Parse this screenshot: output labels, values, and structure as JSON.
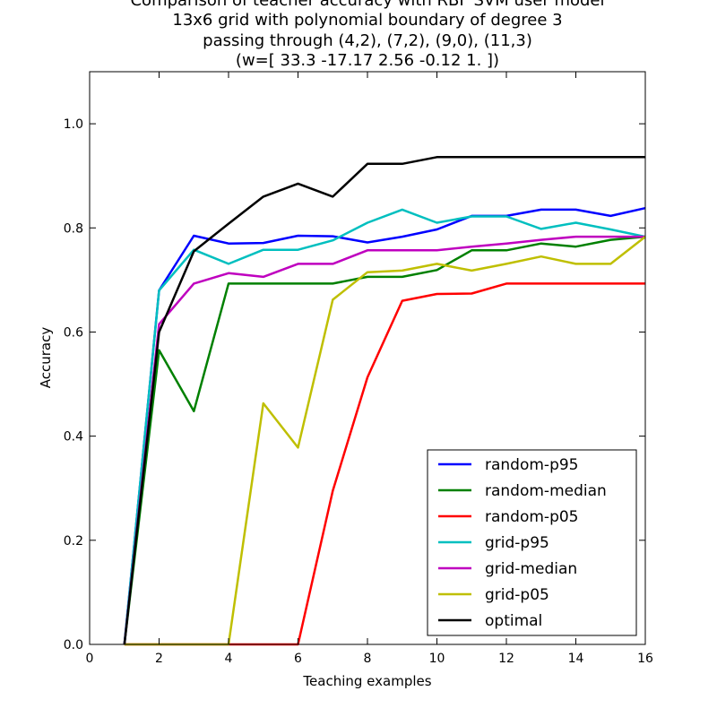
{
  "chart_data": {
    "type": "line",
    "title_lines": [
      "Comparison of teacher accuracy with RBF SVM user model",
      "13x6 grid with polynomial boundary of degree 3",
      "passing through (4,2), (7,2), (9,0), (11,3)",
      "(w=[ 33.3  -17.17   2.56  -0.12   1.  ])"
    ],
    "xlabel": "Teaching examples",
    "ylabel": "Accuracy",
    "xlim": [
      0,
      16
    ],
    "ylim": [
      0,
      1.1
    ],
    "xticks": [
      0,
      2,
      4,
      6,
      8,
      10,
      12,
      14,
      16
    ],
    "xtick_labels": [
      "0",
      "2",
      "4",
      "6",
      "8",
      "10",
      "12",
      "14",
      "16"
    ],
    "yticks": [
      0.0,
      0.2,
      0.4,
      0.6,
      0.8,
      1.0
    ],
    "ytick_labels": [
      "0.0",
      "0.2",
      "0.4",
      "0.6",
      "0.8",
      "1.0"
    ],
    "grid": false,
    "legend_position": "lower-right",
    "x": [
      1,
      2,
      3,
      4,
      5,
      6,
      7,
      8,
      9,
      10,
      11,
      12,
      13,
      14,
      15,
      16
    ],
    "series": [
      {
        "name": "random-p95",
        "color": "#0000ff",
        "values": [
          0,
          0.68,
          0.785,
          0.77,
          0.771,
          0.785,
          0.784,
          0.772,
          0.783,
          0.797,
          0.823,
          0.823,
          0.835,
          0.835,
          0.823,
          0.838
        ]
      },
      {
        "name": "random-median",
        "color": "#008000",
        "values": [
          0,
          0.565,
          0.448,
          0.693,
          0.693,
          0.693,
          0.693,
          0.706,
          0.706,
          0.719,
          0.757,
          0.757,
          0.77,
          0.764,
          0.777,
          0.783
        ]
      },
      {
        "name": "random-p05",
        "color": "#ff0000",
        "values": [
          0,
          0,
          0,
          0,
          0,
          0,
          0.295,
          0.513,
          0.66,
          0.673,
          0.674,
          0.693,
          0.693,
          0.693,
          0.693,
          0.693
        ]
      },
      {
        "name": "grid-p95",
        "color": "#00bfbf",
        "values": [
          0,
          0.68,
          0.758,
          0.731,
          0.758,
          0.758,
          0.776,
          0.81,
          0.835,
          0.81,
          0.822,
          0.822,
          0.798,
          0.81,
          0.797,
          0.783
        ]
      },
      {
        "name": "grid-median",
        "color": "#bf00bf",
        "values": [
          0,
          0.615,
          0.693,
          0.713,
          0.706,
          0.731,
          0.731,
          0.757,
          0.757,
          0.757,
          0.764,
          0.77,
          0.777,
          0.783,
          0.783,
          0.783
        ]
      },
      {
        "name": "grid-p05",
        "color": "#bfbf00",
        "values": [
          0,
          0,
          0,
          0,
          0.463,
          0.378,
          0.662,
          0.715,
          0.718,
          0.731,
          0.718,
          0.731,
          0.745,
          0.731,
          0.731,
          0.783
        ]
      },
      {
        "name": "optimal",
        "color": "#000000",
        "values": [
          0,
          0.6,
          0.755,
          0.808,
          0.86,
          0.885,
          0.86,
          0.923,
          0.923,
          0.936,
          0.936,
          0.936,
          0.936,
          0.936,
          0.936,
          0.936
        ]
      }
    ]
  }
}
